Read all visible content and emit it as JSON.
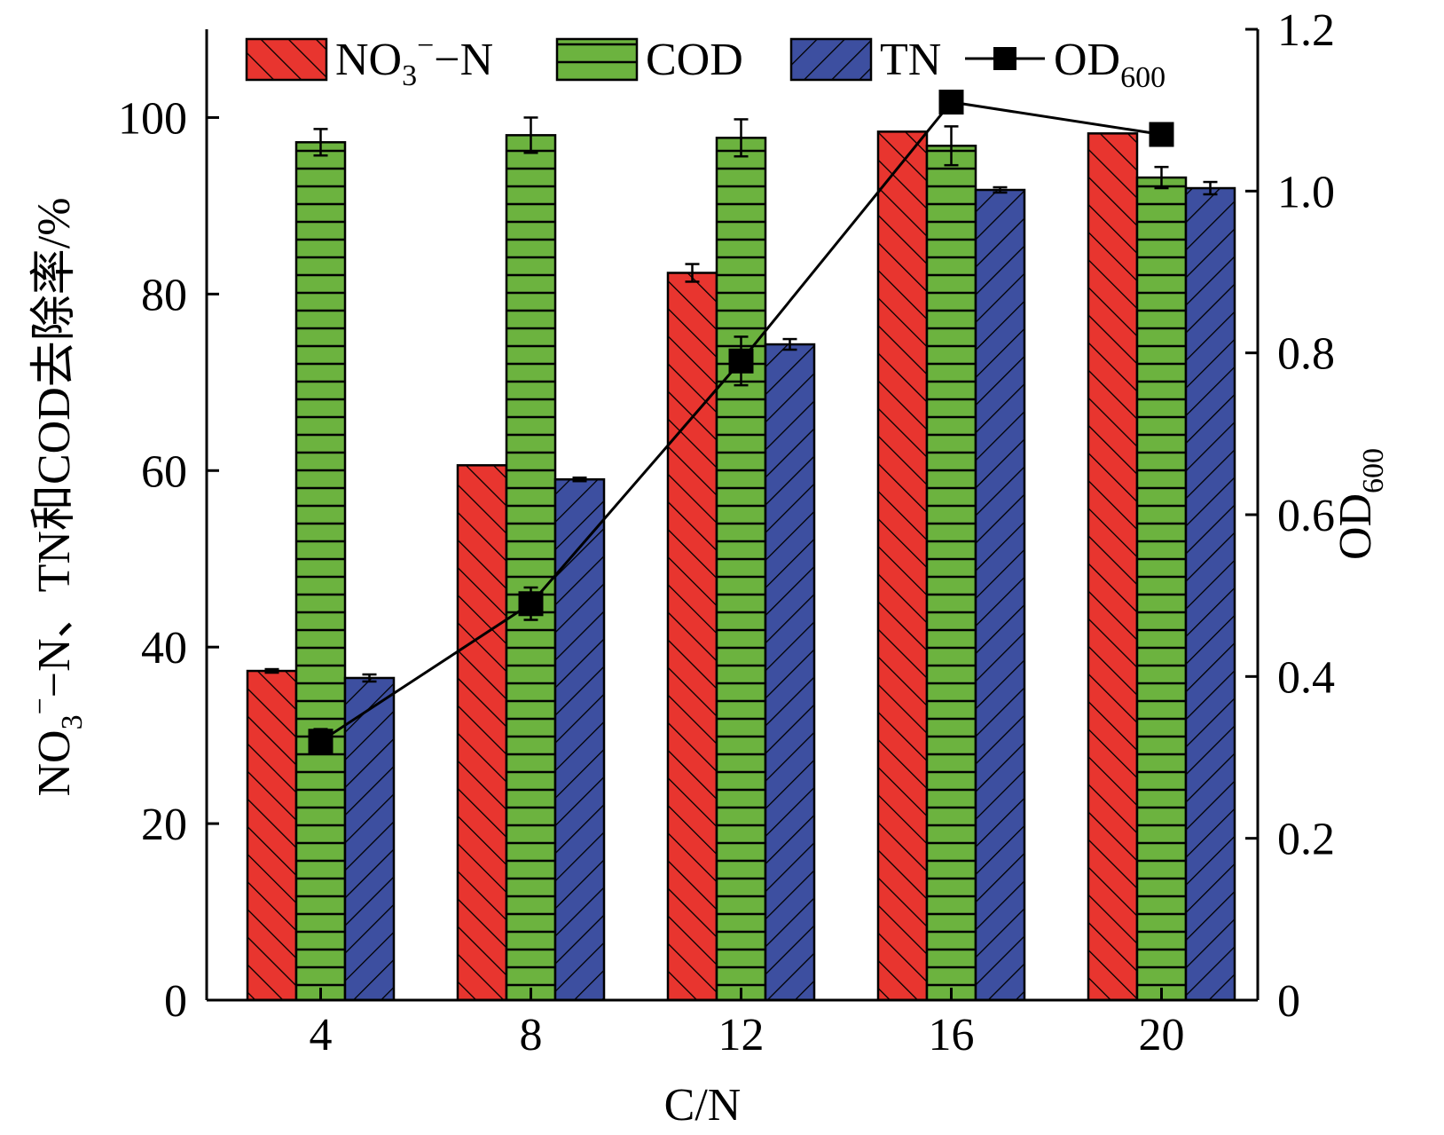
{
  "chart_data": {
    "type": "bar",
    "xlabel": "C/N",
    "ylabel_left": {
      "main": "NO",
      "sub": "3",
      "sup": "−",
      "rest": "−N、TN和COD去除率/%"
    },
    "ylabel_right": {
      "main": "OD",
      "sub": "600"
    },
    "categories": [
      "4",
      "8",
      "12",
      "16",
      "20"
    ],
    "ylim_left": [
      0,
      110
    ],
    "ylim_right": [
      0,
      1.2
    ],
    "yticks_left": [
      "0",
      "20",
      "40",
      "60",
      "80",
      "100"
    ],
    "yticks_right": [
      "0",
      "0.2",
      "0.4",
      "0.6",
      "0.8",
      "1.0",
      "1.2"
    ],
    "series": [
      {
        "name_main": "NO",
        "name_sub": "3",
        "name_sup": "−",
        "name_rest": "−N",
        "values": [
          37.3,
          60.6,
          82.4,
          98.4,
          98.2
        ],
        "errors": [
          0.2,
          0.0,
          1.0,
          0.0,
          0.0
        ],
        "color": "#e8352f",
        "pattern": "diag-up"
      },
      {
        "name": "COD",
        "values": [
          97.2,
          98.0,
          97.7,
          96.8,
          93.2
        ],
        "errors": [
          1.5,
          2.0,
          2.1,
          2.2,
          1.2
        ],
        "color": "#6cb33f",
        "pattern": "horizontal"
      },
      {
        "name": "TN",
        "values": [
          36.5,
          59.0,
          74.3,
          91.8,
          92.0
        ],
        "errors": [
          0.4,
          0.2,
          0.6,
          0.3,
          0.7
        ],
        "color": "#3d4fa0",
        "pattern": "diag-down"
      }
    ],
    "line": {
      "name_main": "OD",
      "name_sub": "600",
      "axis": "right",
      "values": [
        0.32,
        0.49,
        0.79,
        1.11,
        1.07
      ],
      "errors": [
        0.015,
        0.02,
        0.03,
        0.0,
        0.0
      ],
      "color": "#000000"
    },
    "legend": "top"
  }
}
